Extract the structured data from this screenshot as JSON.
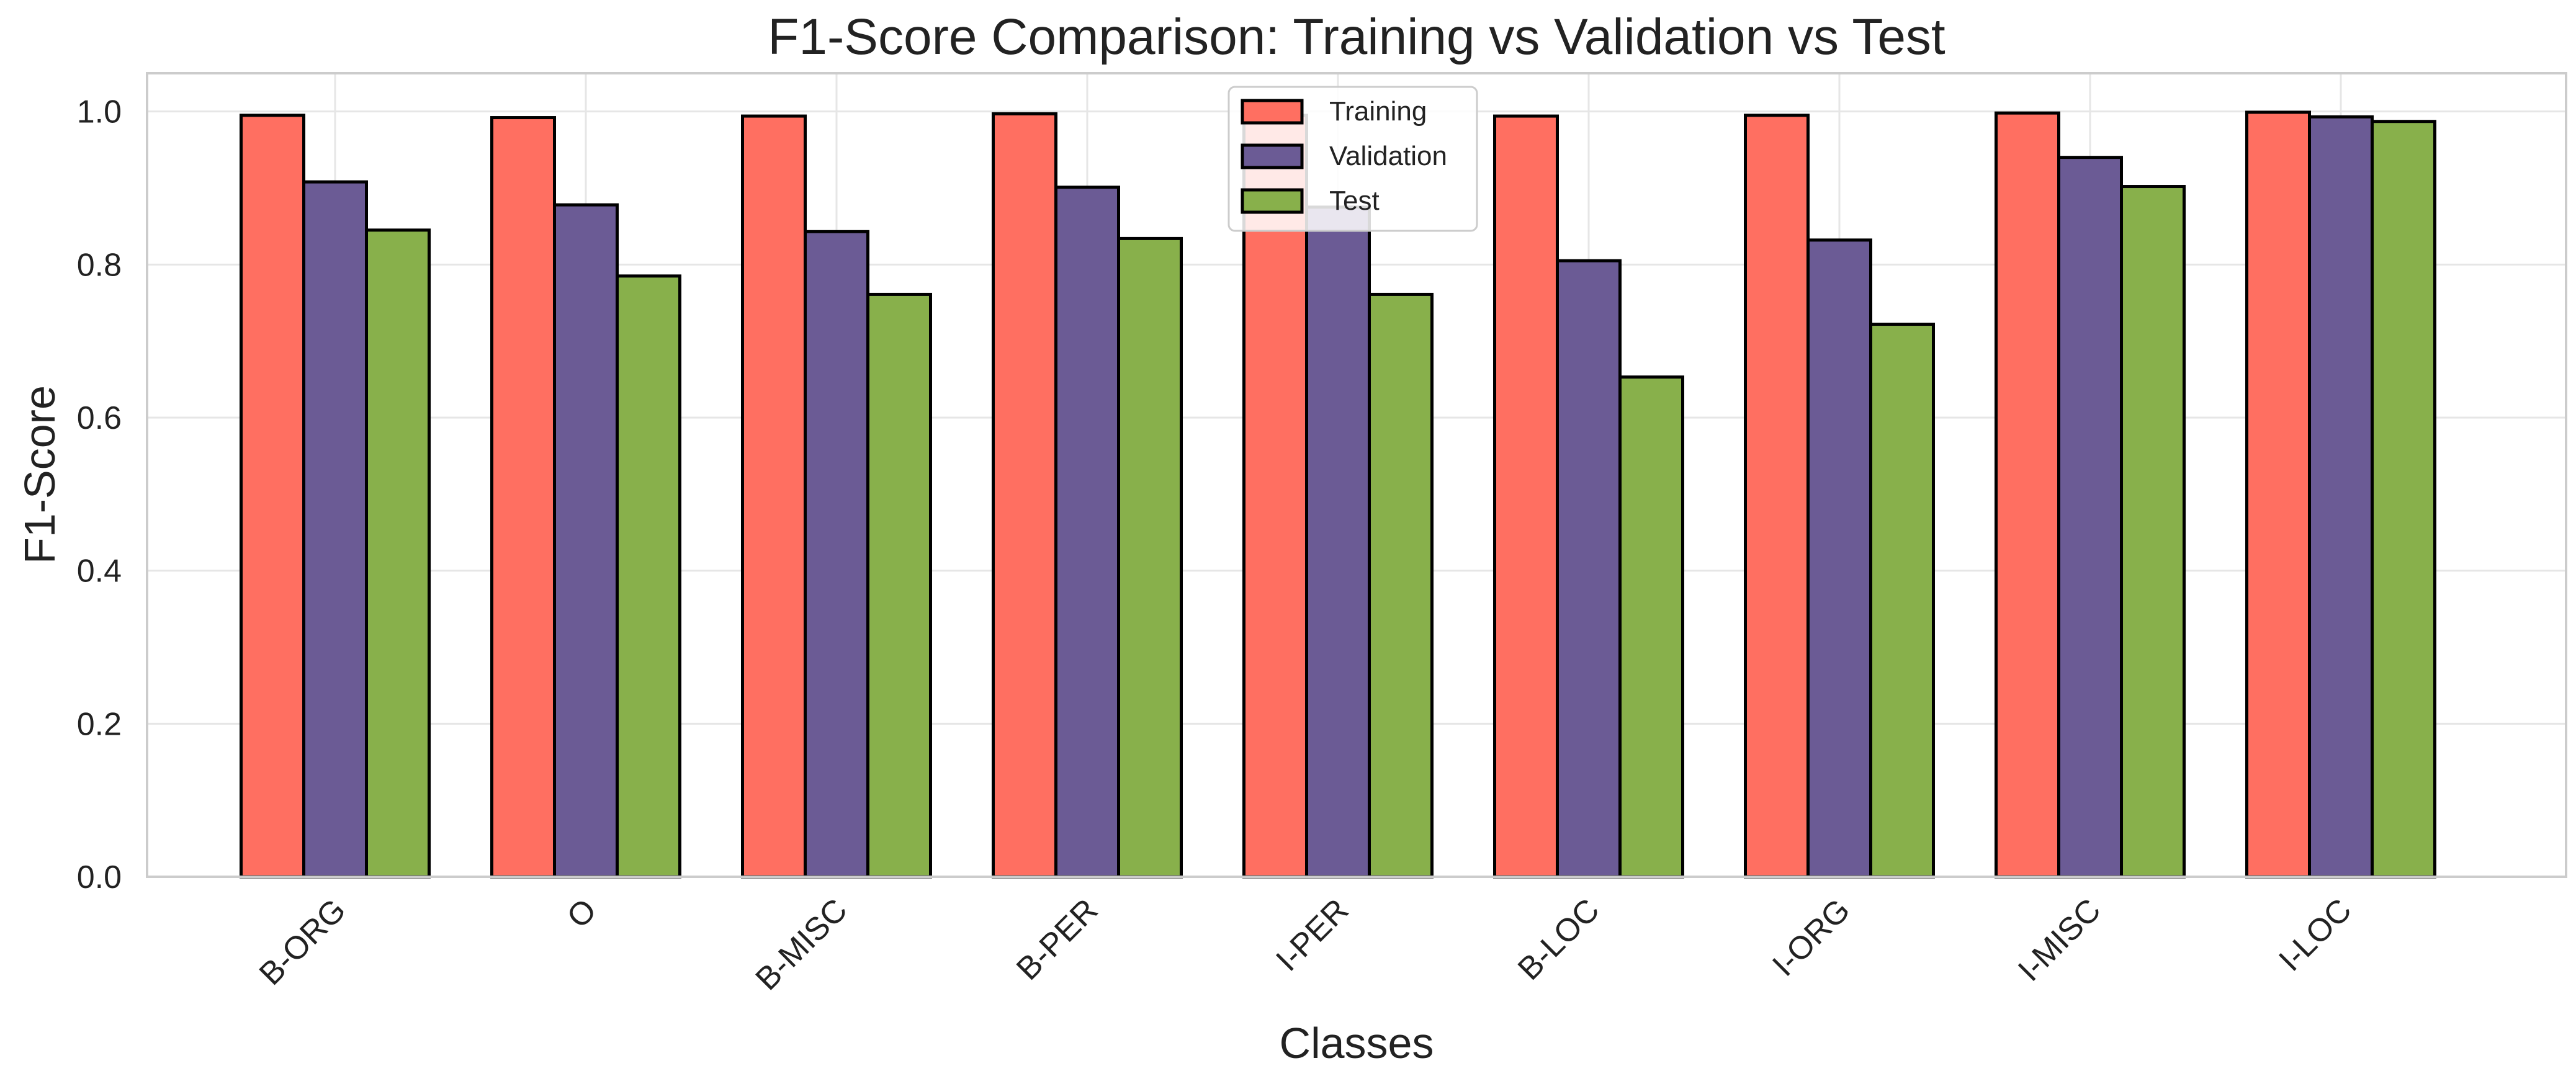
{
  "chart_data": {
    "type": "bar",
    "title": "F1-Score Comparison: Training vs Validation vs Test",
    "xlabel": "Classes",
    "ylabel": "F1-Score",
    "categories": [
      "B-ORG",
      "O",
      "B-MISC",
      "B-PER",
      "I-PER",
      "B-LOC",
      "I-ORG",
      "I-MISC",
      "I-LOC"
    ],
    "series": [
      {
        "name": "Training",
        "color": "#ff6f61",
        "values": [
          0.995,
          0.992,
          0.994,
          0.997,
          0.995,
          0.994,
          0.995,
          0.998,
          0.999
        ]
      },
      {
        "name": "Validation",
        "color": "#6b5b95",
        "values": [
          0.908,
          0.878,
          0.843,
          0.901,
          0.875,
          0.805,
          0.832,
          0.94,
          0.993
        ]
      },
      {
        "name": "Test",
        "color": "#88b04b",
        "values": [
          0.845,
          0.785,
          0.761,
          0.834,
          0.761,
          0.653,
          0.722,
          0.902,
          0.987
        ]
      }
    ],
    "ylim": [
      0,
      1.05
    ],
    "yticks": [
      "0.0",
      "0.2",
      "0.4",
      "0.6",
      "0.8",
      "1.0"
    ],
    "grid": true,
    "legend_position": "top-center"
  }
}
